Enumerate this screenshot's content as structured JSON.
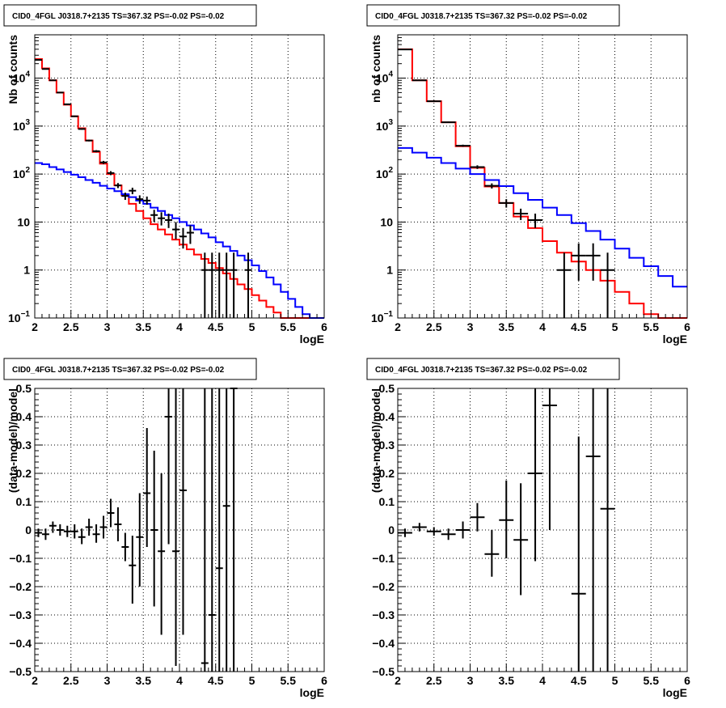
{
  "chart_data": [
    {
      "type": "step-line-errorbar",
      "title": "CID0_4FGL J0318.7+2135 TS=367.32 PS=-0.02 PS=-0.02",
      "xlabel": "logE",
      "ylabel": "Nb of counts",
      "xlim": [
        2,
        6
      ],
      "ylim": [
        0.1,
        80000
      ],
      "yscale": "log",
      "grid": true,
      "x_ticks": [
        "2",
        "2.5",
        "3",
        "3.5",
        "4",
        "4.5",
        "5",
        "5.5",
        "6"
      ],
      "y_ticks": [
        {
          "v": 0.1,
          "b": "10",
          "e": "−1"
        },
        {
          "v": 1,
          "b": "1",
          "e": ""
        },
        {
          "v": 10,
          "b": "10",
          "e": ""
        },
        {
          "v": 100,
          "b": "10",
          "e": "2"
        },
        {
          "v": 1000,
          "b": "10",
          "e": "3"
        },
        {
          "v": 10000,
          "b": "10",
          "e": "4"
        }
      ],
      "bin_edges": [
        2.0,
        2.1,
        2.2,
        2.3,
        2.4,
        2.5,
        2.6,
        2.7,
        2.8,
        2.9,
        3.0,
        3.1,
        3.2,
        3.3,
        3.4,
        3.5,
        3.6,
        3.7,
        3.8,
        3.9,
        4.0,
        4.1,
        4.2,
        4.3,
        4.4,
        4.5,
        4.6,
        4.7,
        4.8,
        4.9,
        5.0,
        5.1,
        5.2,
        5.3,
        5.4,
        5.5,
        5.6,
        5.7,
        5.8,
        5.9,
        6.0
      ],
      "series": [
        {
          "color": "#ff0000",
          "kind": "step",
          "values": [
            25000,
            16000,
            9000,
            5000,
            2800,
            1600,
            900,
            500,
            290,
            165,
            100,
            58,
            36,
            24,
            17,
            12,
            9,
            7,
            5.5,
            4.3,
            3.4,
            2.7,
            2.1,
            1.7,
            1.4,
            1.1,
            0.85,
            0.65,
            0.5,
            0.4,
            0.3,
            0.23,
            0.17,
            0.13,
            0.1,
            0.1,
            0.1,
            0.1,
            0.1,
            0.1
          ]
        },
        {
          "color": "#0000ff",
          "kind": "step",
          "values": [
            170,
            160,
            140,
            125,
            110,
            97,
            86,
            75,
            66,
            57,
            50,
            44,
            38,
            33,
            28,
            24,
            20,
            17,
            14,
            12,
            10,
            8.5,
            7,
            5.8,
            4.8,
            3.8,
            3.1,
            2.5,
            2.0,
            1.6,
            1.25,
            0.95,
            0.7,
            0.5,
            0.35,
            0.25,
            0.17,
            0.12,
            0.1,
            0.1
          ]
        },
        {
          "color": "#000000",
          "kind": "errorbar",
          "points": [
            {
              "x": 2.05,
              "y": 24000,
              "lo": 23800,
              "hi": 24200
            },
            {
              "x": 2.15,
              "y": 15500,
              "lo": 15300,
              "hi": 15700
            },
            {
              "x": 2.25,
              "y": 9000,
              "lo": 8850,
              "hi": 9150
            },
            {
              "x": 2.35,
              "y": 5000,
              "lo": 4900,
              "hi": 5100
            },
            {
              "x": 2.45,
              "y": 2850,
              "lo": 2780,
              "hi": 2920
            },
            {
              "x": 2.55,
              "y": 1600,
              "lo": 1550,
              "hi": 1650
            },
            {
              "x": 2.65,
              "y": 870,
              "lo": 840,
              "hi": 900
            },
            {
              "x": 2.75,
              "y": 500,
              "lo": 480,
              "hi": 520
            },
            {
              "x": 2.85,
              "y": 300,
              "lo": 285,
              "hi": 315
            },
            {
              "x": 2.95,
              "y": 175,
              "lo": 162,
              "hi": 188
            },
            {
              "x": 3.05,
              "y": 105,
              "lo": 95,
              "hi": 115
            },
            {
              "x": 3.15,
              "y": 58,
              "lo": 51,
              "hi": 65
            },
            {
              "x": 3.25,
              "y": 35,
              "lo": 29,
              "hi": 41
            },
            {
              "x": 3.35,
              "y": 45,
              "lo": 38,
              "hi": 52
            },
            {
              "x": 3.45,
              "y": 30,
              "lo": 24,
              "hi": 36
            },
            {
              "x": 3.55,
              "y": 28,
              "lo": 23,
              "hi": 34
            },
            {
              "x": 3.65,
              "y": 14,
              "lo": 10,
              "hi": 18
            },
            {
              "x": 3.75,
              "y": 12,
              "lo": 8.5,
              "hi": 16
            },
            {
              "x": 3.85,
              "y": 11,
              "lo": 7.5,
              "hi": 15
            },
            {
              "x": 3.95,
              "y": 7,
              "lo": 4.4,
              "hi": 10
            },
            {
              "x": 4.05,
              "y": 5,
              "lo": 2.8,
              "hi": 7.5
            },
            {
              "x": 4.15,
              "y": 6,
              "lo": 3.5,
              "hi": 8.5
            },
            {
              "x": 4.35,
              "y": 1,
              "lo": 0.1,
              "hi": 2.3
            },
            {
              "x": 4.45,
              "y": 1,
              "lo": 0.1,
              "hi": 2.3
            },
            {
              "x": 4.55,
              "y": 1,
              "lo": 0.1,
              "hi": 2.3
            },
            {
              "x": 4.65,
              "y": 1,
              "lo": 0.1,
              "hi": 2.3
            },
            {
              "x": 4.75,
              "y": 1,
              "lo": 0.1,
              "hi": 2.3
            },
            {
              "x": 4.95,
              "y": 1,
              "lo": 0.1,
              "hi": 2.3
            }
          ]
        }
      ]
    },
    {
      "type": "step-line-errorbar",
      "title": "CID0_4FGL J0318.7+2135 TS=367.32 PS=-0.02 PS=-0.02",
      "xlabel": "logE",
      "ylabel": "nb of counts",
      "xlim": [
        2,
        6
      ],
      "ylim": [
        0.1,
        80000
      ],
      "yscale": "log",
      "grid": true,
      "x_ticks": [
        "2",
        "2.5",
        "3",
        "3.5",
        "4",
        "4.5",
        "5",
        "5.5",
        "6"
      ],
      "y_ticks": [
        {
          "v": 0.1,
          "b": "10",
          "e": "−1"
        },
        {
          "v": 1,
          "b": "1",
          "e": ""
        },
        {
          "v": 10,
          "b": "10",
          "e": ""
        },
        {
          "v": 100,
          "b": "10",
          "e": "2"
        },
        {
          "v": 1000,
          "b": "10",
          "e": "3"
        },
        {
          "v": 10000,
          "b": "10",
          "e": "4"
        }
      ],
      "bin_edges": [
        2.0,
        2.2,
        2.4,
        2.6,
        2.8,
        3.0,
        3.2,
        3.4,
        3.6,
        3.8,
        4.0,
        4.2,
        4.4,
        4.6,
        4.8,
        5.0,
        5.2,
        5.4,
        5.6,
        5.8,
        6.0
      ],
      "series": [
        {
          "color": "#ff0000",
          "kind": "step",
          "values": [
            40000,
            9000,
            3300,
            1200,
            380,
            135,
            55,
            25,
            13,
            7.5,
            4,
            2.3,
            1.5,
            1.0,
            0.6,
            0.35,
            0.2,
            0.12,
            0.1,
            0.1
          ]
        },
        {
          "color": "#0000ff",
          "kind": "step",
          "values": [
            350,
            280,
            220,
            170,
            130,
            100,
            75,
            56,
            40,
            29,
            20,
            14,
            9.5,
            6.5,
            4.3,
            2.8,
            1.8,
            1.2,
            0.75,
            0.45
          ]
        },
        {
          "color": "#000000",
          "kind": "errorbar",
          "points": [
            {
              "x": 2.1,
              "y": 39500,
              "lo": 39200,
              "hi": 39800
            },
            {
              "x": 2.3,
              "y": 9000,
              "lo": 8850,
              "hi": 9150
            },
            {
              "x": 2.5,
              "y": 3300,
              "lo": 3200,
              "hi": 3400
            },
            {
              "x": 2.7,
              "y": 1200,
              "lo": 1160,
              "hi": 1240
            },
            {
              "x": 2.9,
              "y": 390,
              "lo": 370,
              "hi": 410
            },
            {
              "x": 3.1,
              "y": 140,
              "lo": 128,
              "hi": 152
            },
            {
              "x": 3.3,
              "y": 57,
              "lo": 50,
              "hi": 64
            },
            {
              "x": 3.5,
              "y": 25,
              "lo": 20,
              "hi": 30
            },
            {
              "x": 3.7,
              "y": 15,
              "lo": 11,
              "hi": 19
            },
            {
              "x": 3.9,
              "y": 11,
              "lo": 7.5,
              "hi": 15
            },
            {
              "x": 4.3,
              "y": 1,
              "lo": 0.1,
              "hi": 2.3
            },
            {
              "x": 4.5,
              "y": 2,
              "lo": 0.6,
              "hi": 3.6
            },
            {
              "x": 4.7,
              "y": 2,
              "lo": 0.6,
              "hi": 3.6
            },
            {
              "x": 4.9,
              "y": 1,
              "lo": 0.1,
              "hi": 2.3
            }
          ]
        }
      ]
    },
    {
      "type": "scatter-errorbar",
      "title": "CID0_4FGL J0318.7+2135 TS=367.32 PS=-0.02 PS=-0.02",
      "xlabel": "logE",
      "ylabel": "(data-model)/model",
      "xlim": [
        2,
        6
      ],
      "ylim": [
        -0.5,
        0.5
      ],
      "grid": true,
      "x_ticks": [
        "2",
        "2.5",
        "3",
        "3.5",
        "4",
        "4.5",
        "5",
        "5.5",
        "6"
      ],
      "y_ticks": [
        "−0.5",
        "−0.4",
        "−0.3",
        "−0.2",
        "−0.1",
        "0",
        "0.1",
        "0.2",
        "0.3",
        "0.4",
        "0.5"
      ],
      "bin_width": 0.1,
      "points": [
        {
          "x": 2.05,
          "y": -0.01,
          "lo": -0.025,
          "hi": 0.005
        },
        {
          "x": 2.15,
          "y": -0.015,
          "lo": -0.035,
          "hi": 0.005
        },
        {
          "x": 2.25,
          "y": 0.015,
          "lo": -0.01,
          "hi": 0.03
        },
        {
          "x": 2.35,
          "y": 0.0,
          "lo": -0.02,
          "hi": 0.02
        },
        {
          "x": 2.45,
          "y": -0.005,
          "lo": -0.025,
          "hi": 0.015
        },
        {
          "x": 2.55,
          "y": -0.005,
          "lo": -0.03,
          "hi": 0.02
        },
        {
          "x": 2.65,
          "y": -0.025,
          "lo": -0.05,
          "hi": 0.005
        },
        {
          "x": 2.75,
          "y": 0.01,
          "lo": -0.02,
          "hi": 0.04
        },
        {
          "x": 2.85,
          "y": -0.015,
          "lo": -0.045,
          "hi": 0.02
        },
        {
          "x": 2.95,
          "y": 0.01,
          "lo": -0.03,
          "hi": 0.05
        },
        {
          "x": 3.05,
          "y": 0.06,
          "lo": 0.01,
          "hi": 0.11
        },
        {
          "x": 3.15,
          "y": 0.02,
          "lo": -0.04,
          "hi": 0.08
        },
        {
          "x": 3.25,
          "y": -0.06,
          "lo": -0.11,
          "hi": -0.01
        },
        {
          "x": 3.35,
          "y": -0.125,
          "lo": -0.26,
          "hi": -0.02
        },
        {
          "x": 3.45,
          "y": -0.025,
          "lo": -0.2,
          "hi": 0.13
        },
        {
          "x": 3.55,
          "y": 0.13,
          "lo": -0.06,
          "hi": 0.36
        },
        {
          "x": 3.65,
          "y": 0.0,
          "lo": -0.27,
          "hi": 0.28
        },
        {
          "x": 3.75,
          "y": -0.075,
          "lo": -0.37,
          "hi": 0.2
        },
        {
          "x": 3.85,
          "y": 0.4,
          "lo": -0.05,
          "hi": 0.5
        },
        {
          "x": 3.95,
          "y": -0.075,
          "lo": -0.48,
          "hi": 0.5
        },
        {
          "x": 4.05,
          "y": 0.14,
          "lo": -0.37,
          "hi": 0.5
        },
        {
          "x": 4.35,
          "y": -0.47,
          "lo": -0.5,
          "hi": 0.5
        },
        {
          "x": 4.45,
          "y": -0.3,
          "lo": -0.5,
          "hi": 0.5
        },
        {
          "x": 4.55,
          "y": -0.135,
          "lo": -0.5,
          "hi": 0.5
        },
        {
          "x": 4.65,
          "y": 0.085,
          "lo": -0.5,
          "hi": 0.5
        },
        {
          "x": 4.75,
          "y": 0.5,
          "lo": -0.5,
          "hi": 0.5
        }
      ]
    },
    {
      "type": "scatter-errorbar",
      "title": "CID0_4FGL J0318.7+2135 TS=367.32 PS=-0.02 PS=-0.02",
      "xlabel": "logE",
      "ylabel": "(data-model)/model",
      "xlim": [
        2,
        6
      ],
      "ylim": [
        -0.5,
        0.5
      ],
      "grid": true,
      "x_ticks": [
        "2",
        "2.5",
        "3",
        "3.5",
        "4",
        "4.5",
        "5",
        "5.5",
        "6"
      ],
      "y_ticks": [
        "−0.5",
        "−0.4",
        "−0.3",
        "−0.2",
        "−0.1",
        "0",
        "0.1",
        "0.2",
        "0.3",
        "0.4",
        "0.5"
      ],
      "bin_width": 0.2,
      "points": [
        {
          "x": 2.1,
          "y": -0.01,
          "lo": -0.025,
          "hi": 0.005
        },
        {
          "x": 2.3,
          "y": 0.01,
          "lo": -0.005,
          "hi": 0.025
        },
        {
          "x": 2.5,
          "y": -0.005,
          "lo": -0.02,
          "hi": 0.01
        },
        {
          "x": 2.7,
          "y": -0.015,
          "lo": -0.035,
          "hi": 0.005
        },
        {
          "x": 2.9,
          "y": 0.0,
          "lo": -0.03,
          "hi": 0.03
        },
        {
          "x": 3.1,
          "y": 0.045,
          "lo": -0.005,
          "hi": 0.095
        },
        {
          "x": 3.3,
          "y": -0.085,
          "lo": -0.165,
          "hi": 0.0
        },
        {
          "x": 3.5,
          "y": 0.035,
          "lo": -0.1,
          "hi": 0.175
        },
        {
          "x": 3.7,
          "y": -0.035,
          "lo": -0.23,
          "hi": 0.165
        },
        {
          "x": 3.9,
          "y": 0.2,
          "lo": -0.11,
          "hi": 0.5
        },
        {
          "x": 4.1,
          "y": 0.44,
          "lo": 0.0,
          "hi": 0.5
        },
        {
          "x": 4.5,
          "y": -0.225,
          "lo": -0.5,
          "hi": 0.33
        },
        {
          "x": 4.7,
          "y": 0.26,
          "lo": -0.5,
          "hi": 0.5
        },
        {
          "x": 4.9,
          "y": 0.075,
          "lo": -0.5,
          "hi": 0.5
        }
      ]
    }
  ]
}
